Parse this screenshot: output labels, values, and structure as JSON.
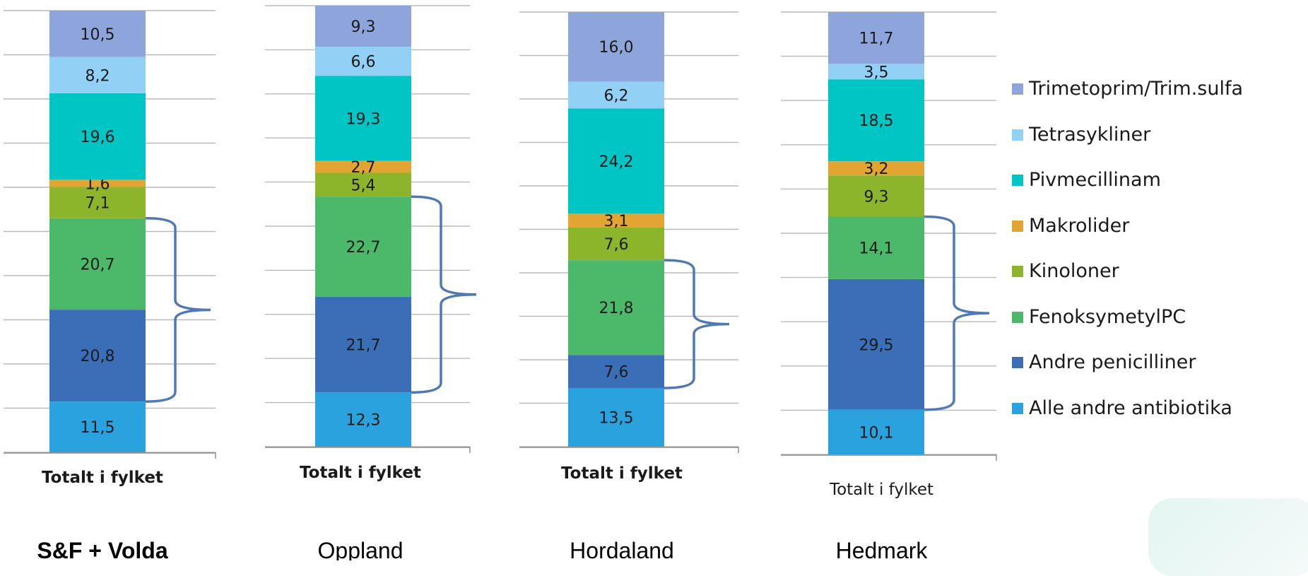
{
  "chart_data": {
    "type": "bar",
    "stacked": true,
    "categories": [
      "Totalt i fylket"
    ],
    "series_order_bottom_to_top": [
      "Alle andre antibiotika",
      "Andre penicilliner",
      "FenoksymetylPC",
      "Kinoloner",
      "Makrolider",
      "Pivmecillinam",
      "Tetrasykliner",
      "Trimetoprim/Trim.sulfa"
    ],
    "legend": [
      {
        "name": "Trimetoprim/Trim.sulfa",
        "color": "#8EA5DB"
      },
      {
        "name": "Tetrasykliner",
        "color": "#92D1F5"
      },
      {
        "name": "Pivmecillinam",
        "color": "#00C5C5"
      },
      {
        "name": "Makrolider",
        "color": "#E2A532"
      },
      {
        "name": "Kinoloner",
        "color": "#8CB52C"
      },
      {
        "name": "FenoksymetylPC",
        "color": "#4CB86A"
      },
      {
        "name": "Andre penicilliner",
        "color": "#3A6FB8"
      },
      {
        "name": "Alle andre antibiotika",
        "color": "#2AA2DE"
      }
    ],
    "legend_position": "right",
    "grid": true,
    "panels": [
      {
        "title": "S&F + Volda",
        "title_bold": true,
        "category_label": "Totalt i fylket",
        "category_bold": true,
        "values": [
          11.5,
          20.8,
          20.7,
          7.1,
          1.6,
          19.6,
          8.2,
          10.5
        ],
        "labels": [
          "11,5",
          "20,8",
          "20,7",
          "7,1",
          "1,6",
          "19,6",
          "8,2",
          "10,5"
        ],
        "brace_series": [
          "Andre penicilliner",
          "FenoksymetylPC"
        ]
      },
      {
        "title": "Oppland",
        "title_bold": false,
        "category_label": "Totalt i fylket",
        "category_bold": true,
        "values": [
          12.3,
          21.7,
          22.7,
          5.4,
          2.7,
          19.3,
          6.6,
          9.3
        ],
        "labels": [
          "12,3",
          "21,7",
          "22,7",
          "5,4",
          "2,7",
          "19,3",
          "6,6",
          "9,3"
        ],
        "brace_series": [
          "Andre penicilliner",
          "FenoksymetylPC"
        ]
      },
      {
        "title": "Hordaland",
        "title_bold": false,
        "category_label": "Totalt i fylket",
        "category_bold": true,
        "values": [
          13.5,
          7.6,
          21.8,
          7.6,
          3.1,
          24.2,
          6.2,
          16.0
        ],
        "labels": [
          "13,5",
          "7,6",
          "21,8",
          "7,6",
          "3,1",
          "24,2",
          "6,2",
          "16,0"
        ],
        "brace_series": [
          "Andre penicilliner",
          "FenoksymetylPC"
        ]
      },
      {
        "title": "Hedmark",
        "title_bold": false,
        "category_label": "Totalt i fylket",
        "category_bold": false,
        "values": [
          10.1,
          29.5,
          14.1,
          9.3,
          3.2,
          18.5,
          3.5,
          11.7
        ],
        "labels": [
          "10,1",
          "29,5",
          "14,1",
          "9,3",
          "3,2",
          "18,5",
          "3,5",
          "11,7"
        ],
        "brace_series": [
          "Andre penicilliner",
          "FenoksymetylPC"
        ]
      }
    ]
  }
}
